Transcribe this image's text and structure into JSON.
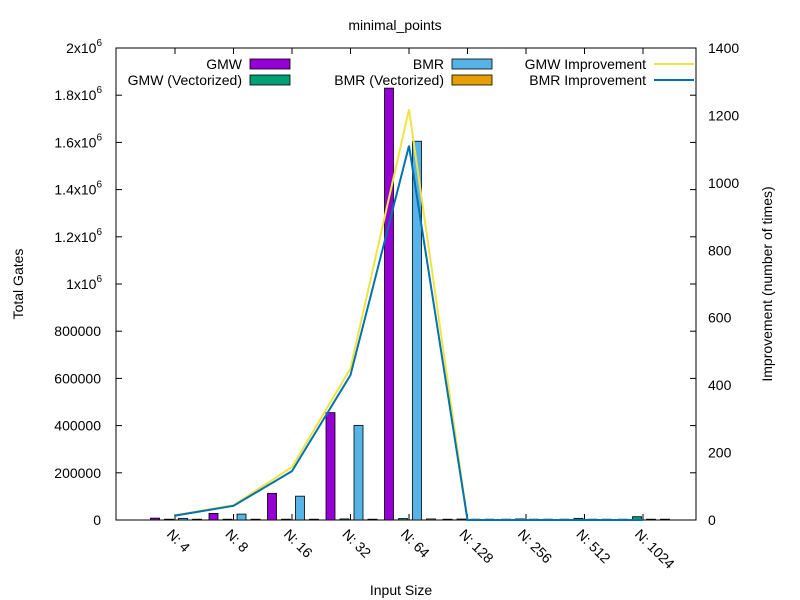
{
  "chart_data": {
    "type": "bar",
    "title": "minimal_points",
    "xlabel": "Input Size",
    "ylabel": "Total Gates",
    "y2label": "Improvement (number of times)",
    "categories": [
      "N: 4",
      "N: 8",
      "N: 16",
      "N: 32",
      "N: 64",
      "N: 128",
      "N: 256",
      "N: 512",
      "N: 1024"
    ],
    "ylim": [
      0,
      2000000
    ],
    "y2lim": [
      0,
      1400
    ],
    "y_ticks": [
      {
        "value": 0,
        "label": "0"
      },
      {
        "value": 200000,
        "label": "200000"
      },
      {
        "value": 400000,
        "label": "400000"
      },
      {
        "value": 600000,
        "label": "600000"
      },
      {
        "value": 800000,
        "label": "800000"
      },
      {
        "value": 1000000,
        "label": "1x10",
        "exp": "6"
      },
      {
        "value": 1200000,
        "label": "1.2x10",
        "exp": "6"
      },
      {
        "value": 1400000,
        "label": "1.4x10",
        "exp": "6"
      },
      {
        "value": 1600000,
        "label": "1.6x10",
        "exp": "6"
      },
      {
        "value": 1800000,
        "label": "1.8x10",
        "exp": "6"
      },
      {
        "value": 2000000,
        "label": "2x10",
        "exp": "6"
      }
    ],
    "y2_ticks": [
      0,
      200,
      400,
      600,
      800,
      1000,
      1200,
      1400
    ],
    "grid": false,
    "legend_position": "top",
    "bar_series": [
      {
        "name": "GMW",
        "color": "#9400d3",
        "values": [
          8000,
          28000,
          113000,
          455000,
          1830000,
          1000,
          1000,
          1000,
          1000
        ]
      },
      {
        "name": "GMW (Vectorized)",
        "color": "#009e73",
        "values": [
          600,
          1200,
          2400,
          4500,
          6000,
          4000,
          4500,
          7000,
          14000
        ]
      },
      {
        "name": "BMR",
        "color": "#56b4e9",
        "values": [
          7000,
          25000,
          101000,
          401000,
          1605000,
          800,
          800,
          800,
          800
        ]
      },
      {
        "name": "BMR (Vectorized)",
        "color": "#e69f00",
        "values": [
          500,
          900,
          1700,
          3000,
          4500,
          300,
          300,
          300,
          300
        ]
      }
    ],
    "line_series": [
      {
        "name": "GMW Improvement",
        "color": "#f0e442",
        "axis": "y2",
        "values": [
          14,
          44,
          157,
          450,
          1218,
          0,
          0,
          0,
          0
        ]
      },
      {
        "name": "BMR Improvement",
        "color": "#0072b2",
        "axis": "y2",
        "values": [
          13,
          42,
          145,
          430,
          1110,
          0,
          0,
          0,
          0
        ]
      }
    ]
  }
}
